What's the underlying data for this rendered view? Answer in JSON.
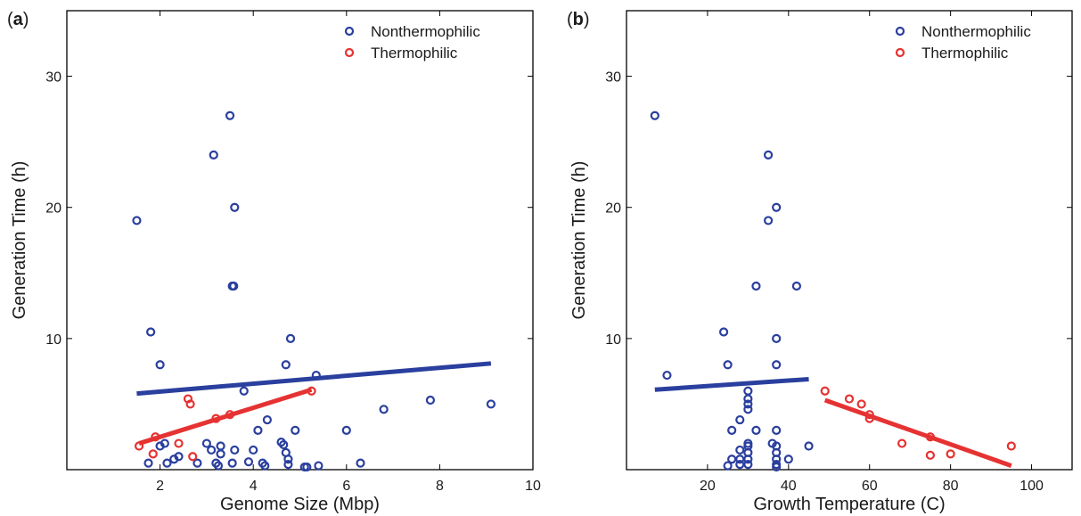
{
  "colors": {
    "nonthermophilic": "#2a3f9e",
    "thermophilic": "#e63232",
    "axis": "#000000",
    "text": "#1a1a1a"
  },
  "chart_data": [
    {
      "panel_label": "(a)",
      "panel_letter": "a",
      "type": "scatter",
      "xlabel": "Genome Size (Mbp)",
      "ylabel": "Generation Time (h)",
      "xlim": [
        0,
        10
      ],
      "ylim": [
        0,
        35
      ],
      "xticks": [
        2,
        4,
        6,
        8,
        10
      ],
      "yticks": [
        10,
        20,
        30
      ],
      "grid": false,
      "legend_position": "top-right",
      "series": [
        {
          "name": "Nonthermophilic",
          "color_key": "nonthermophilic",
          "points": [
            [
              1.5,
              19
            ],
            [
              1.8,
              10.5
            ],
            [
              2.0,
              8
            ],
            [
              3.15,
              24
            ],
            [
              3.5,
              27
            ],
            [
              3.6,
              20
            ],
            [
              3.55,
              14
            ],
            [
              3.58,
              14
            ],
            [
              4.8,
              10
            ],
            [
              4.7,
              8
            ],
            [
              5.35,
              7.2
            ],
            [
              3.8,
              6
            ],
            [
              6.8,
              4.6
            ],
            [
              7.8,
              5.3
            ],
            [
              9.1,
              5
            ],
            [
              4.3,
              3.8
            ],
            [
              4.1,
              3
            ],
            [
              4.9,
              3
            ],
            [
              6.0,
              3
            ],
            [
              1.75,
              0.5
            ],
            [
              2.0,
              1.8
            ],
            [
              2.1,
              2
            ],
            [
              2.15,
              0.5
            ],
            [
              2.3,
              0.8
            ],
            [
              2.4,
              1
            ],
            [
              2.8,
              0.5
            ],
            [
              3.0,
              2
            ],
            [
              3.1,
              1.5
            ],
            [
              3.2,
              0.5
            ],
            [
              3.25,
              0.3
            ],
            [
              3.3,
              1.8
            ],
            [
              3.3,
              1.2
            ],
            [
              3.55,
              0.5
            ],
            [
              3.6,
              1.5
            ],
            [
              3.9,
              0.6
            ],
            [
              4.0,
              1.5
            ],
            [
              4.2,
              0.5
            ],
            [
              4.25,
              0.3
            ],
            [
              4.6,
              2.1
            ],
            [
              4.65,
              1.9
            ],
            [
              4.7,
              1.3
            ],
            [
              4.75,
              0.8
            ],
            [
              4.75,
              0.4
            ],
            [
              5.1,
              0.2
            ],
            [
              5.15,
              0.2
            ],
            [
              5.4,
              0.3
            ],
            [
              6.3,
              0.5
            ]
          ]
        },
        {
          "name": "Thermophilic",
          "color_key": "thermophilic",
          "points": [
            [
              1.55,
              1.8
            ],
            [
              1.9,
              2.5
            ],
            [
              1.85,
              1.2
            ],
            [
              2.4,
              2
            ],
            [
              2.6,
              5.4
            ],
            [
              2.65,
              5.0
            ],
            [
              2.7,
              1.0
            ],
            [
              3.2,
              3.9
            ],
            [
              3.5,
              4.2
            ],
            [
              5.25,
              6
            ]
          ]
        }
      ],
      "fit_lines": [
        {
          "color_key": "nonthermophilic",
          "x": [
            1.5,
            9.1
          ],
          "y": [
            5.8,
            8.1
          ]
        },
        {
          "color_key": "thermophilic",
          "x": [
            1.55,
            5.25
          ],
          "y": [
            2.0,
            6.1
          ]
        }
      ]
    },
    {
      "panel_label": "(b)",
      "panel_letter": "b",
      "type": "scatter",
      "xlabel": "Growth Temperature (C)",
      "ylabel": "Generation Time (h)",
      "xlim": [
        0,
        110
      ],
      "ylim": [
        0,
        35
      ],
      "xticks": [
        20,
        40,
        60,
        80,
        100
      ],
      "yticks": [
        10,
        20,
        30
      ],
      "grid": false,
      "legend_position": "top-right",
      "series": [
        {
          "name": "Nonthermophilic",
          "color_key": "nonthermophilic",
          "points": [
            [
              7,
              27
            ],
            [
              10,
              7.2
            ],
            [
              24,
              10.5
            ],
            [
              25,
              8
            ],
            [
              35,
              24
            ],
            [
              35,
              19
            ],
            [
              37,
              20
            ],
            [
              32,
              14
            ],
            [
              42,
              14
            ],
            [
              37,
              10
            ],
            [
              37,
              8
            ],
            [
              30,
              6
            ],
            [
              30,
              5.4
            ],
            [
              30,
              5
            ],
            [
              30,
              4.6
            ],
            [
              28,
              3.8
            ],
            [
              26,
              3
            ],
            [
              32,
              3
            ],
            [
              37,
              3
            ],
            [
              30,
              2
            ],
            [
              30,
              1.8
            ],
            [
              36,
              2
            ],
            [
              37,
              1.8
            ],
            [
              45,
              1.8
            ],
            [
              28,
              1.5
            ],
            [
              30,
              1.3
            ],
            [
              37,
              1.3
            ],
            [
              26,
              0.8
            ],
            [
              28,
              0.8
            ],
            [
              30,
              0.8
            ],
            [
              37,
              0.8
            ],
            [
              40,
              0.8
            ],
            [
              25,
              0.3
            ],
            [
              28,
              0.4
            ],
            [
              30,
              0.4
            ],
            [
              37,
              0.4
            ],
            [
              37,
              0.2
            ]
          ]
        },
        {
          "name": "Thermophilic",
          "color_key": "thermophilic",
          "points": [
            [
              49,
              6
            ],
            [
              55,
              5.4
            ],
            [
              58,
              5
            ],
            [
              60,
              4.2
            ],
            [
              60,
              3.9
            ],
            [
              68,
              2
            ],
            [
              75,
              2.5
            ],
            [
              75,
              1.1
            ],
            [
              80,
              1.2
            ],
            [
              95,
              1.8
            ]
          ]
        }
      ],
      "fit_lines": [
        {
          "color_key": "nonthermophilic",
          "x": [
            7,
            45
          ],
          "y": [
            6.1,
            6.9
          ]
        },
        {
          "color_key": "thermophilic",
          "x": [
            49,
            95
          ],
          "y": [
            5.3,
            0.3
          ]
        }
      ]
    }
  ]
}
